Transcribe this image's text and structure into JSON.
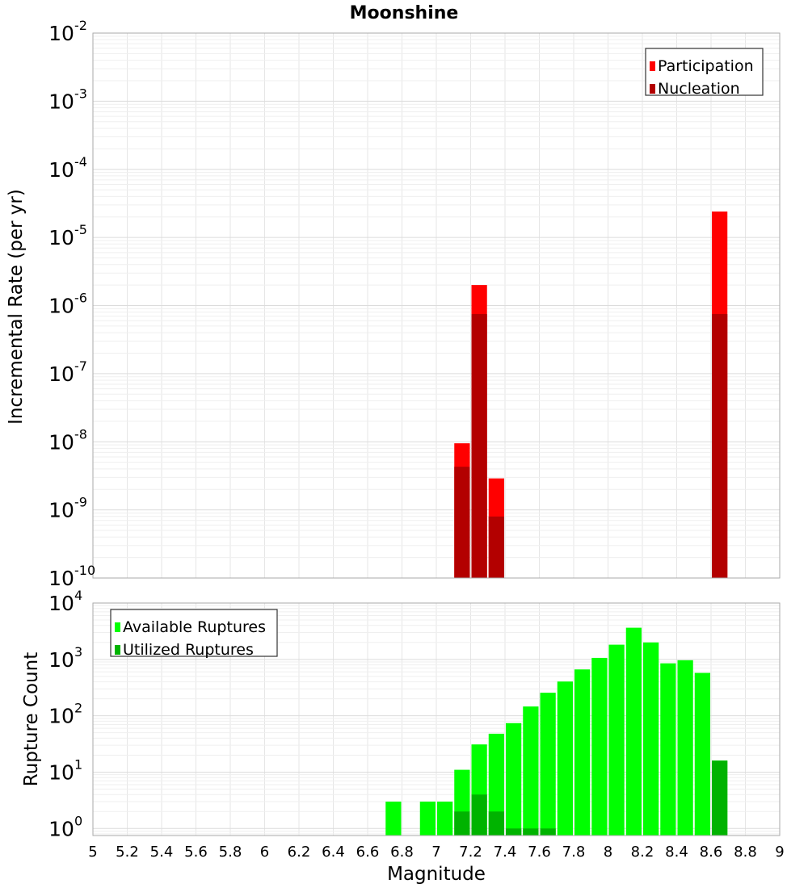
{
  "chart_data": [
    {
      "type": "bar",
      "title": "Moonshine",
      "ylabel": "Incremental Rate (per yr)",
      "xlabel": "",
      "xlim": [
        5,
        9
      ],
      "ylim": [
        1e-10,
        0.01
      ],
      "yscale": "log",
      "ytick_exponents": [
        "-10",
        "-9",
        "-8",
        "-7",
        "-6",
        "-5",
        "-4",
        "-3",
        "-2"
      ],
      "bin_width": 0.1,
      "grid": true,
      "legend_position": "top-right",
      "series": [
        {
          "name": "Participation",
          "color": "#ff0000",
          "x": [
            7.15,
            7.25,
            7.35,
            8.65
          ],
          "values": [
            9.5e-09,
            2e-06,
            2.9e-09,
            2.4e-05
          ]
        },
        {
          "name": "Nucleation",
          "color": "#b30000",
          "x": [
            7.15,
            7.25,
            7.35,
            8.65
          ],
          "values": [
            4.3e-09,
            7.5e-07,
            8e-10,
            7.5e-07
          ]
        }
      ]
    },
    {
      "type": "bar",
      "title": "",
      "ylabel": "Rupture Count",
      "xlabel": "Magnitude",
      "xlim": [
        5,
        9
      ],
      "ylim": [
        0.75,
        10000
      ],
      "yscale": "log",
      "ytick_exponents": [
        "0",
        "1",
        "2",
        "3",
        "4"
      ],
      "bin_width": 0.1,
      "xtick_labels": [
        "5",
        "5.2",
        "5.4",
        "5.6",
        "5.8",
        "6",
        "6.2",
        "6.4",
        "6.6",
        "6.8",
        "7",
        "7.2",
        "7.4",
        "7.6",
        "7.8",
        "8",
        "8.2",
        "8.4",
        "8.6",
        "8.8",
        "9"
      ],
      "grid": true,
      "legend_position": "top-left",
      "series": [
        {
          "name": "Available Ruptures",
          "color": "#00ff00",
          "x": [
            6.75,
            6.95,
            7.05,
            7.15,
            7.25,
            7.35,
            7.45,
            7.55,
            7.65,
            7.75,
            7.85,
            7.95,
            8.05,
            8.15,
            8.25,
            8.35,
            8.45,
            8.55,
            8.65
          ],
          "values": [
            3,
            3,
            3,
            11,
            31,
            48,
            74,
            146,
            256,
            405,
            664,
            1064,
            1824,
            3646,
            2000,
            852,
            966,
            576,
            16
          ]
        },
        {
          "name": "Utilized Ruptures",
          "color": "#00b300",
          "x": [
            7.15,
            7.25,
            7.35,
            7.45,
            7.55,
            7.65,
            8.65
          ],
          "values": [
            2,
            4,
            2,
            1,
            1,
            1,
            16
          ]
        }
      ]
    }
  ]
}
